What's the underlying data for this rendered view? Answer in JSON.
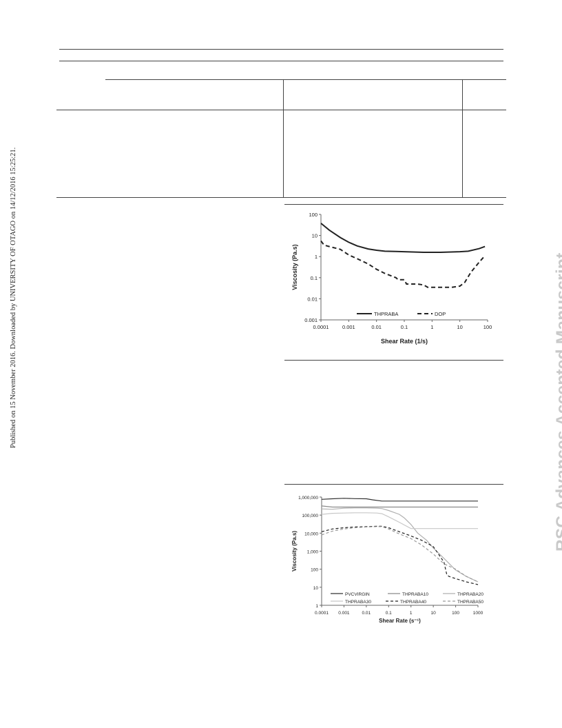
{
  "side_note": "Published on 15 November 2016. Downloaded by UNIVERSITY OF OTAGO on 14/12/2016 15:25:21.",
  "watermark": "RSC Advances Accepted Manuscript",
  "chart_data": [
    {
      "type": "line",
      "xlabel": "Shear Rate (1/s)",
      "ylabel": "Viscosity (Pa.s)",
      "x_scale": "log",
      "y_scale": "log",
      "xlim": [
        0.0001,
        100
      ],
      "ylim": [
        0.001,
        100
      ],
      "x_ticks": [
        "0.0001",
        "0.001",
        "0.01",
        "0.1",
        "1",
        "10",
        "100"
      ],
      "y_ticks": [
        "0.001",
        "0.01",
        "0.1",
        "1",
        "10",
        "100"
      ],
      "legend_position": "bottom",
      "series": [
        {
          "name": "THPRABA",
          "color": "#222222",
          "style": "solid",
          "x": [
            0.0001,
            0.0002,
            0.0005,
            0.001,
            0.002,
            0.005,
            0.01,
            0.02,
            0.05,
            0.1,
            0.2,
            0.5,
            1,
            2,
            5,
            10,
            20,
            50,
            80
          ],
          "y": [
            38,
            18,
            8,
            4.8,
            3.2,
            2.3,
            2.0,
            1.8,
            1.75,
            1.7,
            1.65,
            1.6,
            1.6,
            1.6,
            1.65,
            1.7,
            1.8,
            2.4,
            3.0
          ]
        },
        {
          "name": "DOP",
          "color": "#222222",
          "style": "dashed",
          "x": [
            0.0001,
            0.00013,
            0.0002,
            0.0005,
            0.001,
            0.002,
            0.005,
            0.01,
            0.02,
            0.05,
            0.06,
            0.1,
            0.12,
            0.15,
            0.3,
            0.5,
            0.7,
            1,
            2,
            5,
            10,
            15,
            25,
            50,
            80
          ],
          "y": [
            5.5,
            3.5,
            3.0,
            2.2,
            1.2,
            0.8,
            0.45,
            0.25,
            0.16,
            0.1,
            0.08,
            0.08,
            0.05,
            0.05,
            0.05,
            0.045,
            0.035,
            0.035,
            0.035,
            0.035,
            0.04,
            0.06,
            0.18,
            0.55,
            1.1
          ]
        }
      ]
    },
    {
      "type": "line",
      "xlabel": "Shear Rate (s⁻¹)",
      "ylabel": "Viscosity (Pa.s)",
      "x_scale": "log",
      "y_scale": "log",
      "xlim": [
        0.0001,
        1000
      ],
      "ylim": [
        1,
        1000000
      ],
      "x_ticks": [
        "0.0001",
        "0.001",
        "0.01",
        "0.1",
        "1",
        "10",
        "100",
        "1000"
      ],
      "y_ticks": [
        "1",
        "10",
        "100",
        "1,000",
        "10,000",
        "100,000",
        "1,000,000"
      ],
      "legend_position": "bottom",
      "series": [
        {
          "name": "PVCVIRGIN",
          "color": "#333333",
          "style": "solid",
          "x": [
            0.0001,
            0.0003,
            0.001,
            0.003,
            0.01,
            0.02,
            0.05,
            0.1,
            1,
            10,
            100,
            1000
          ],
          "y": [
            750000,
            800000,
            850000,
            820000,
            800000,
            700000,
            600000,
            600000,
            600000,
            600000,
            600000,
            600000
          ]
        },
        {
          "name": "THPRABA10",
          "color": "#8a8a8a",
          "style": "solid",
          "x": [
            0.0001,
            0.0003,
            0.001,
            0.003,
            0.01,
            0.03,
            0.1,
            1,
            10,
            100,
            1000
          ],
          "y": [
            320000,
            280000,
            280000,
            280000,
            280000,
            280000,
            280000,
            280000,
            280000,
            280000,
            280000
          ]
        },
        {
          "name": "THPRABA20",
          "color": "#b0b0b0",
          "style": "solid",
          "x": [
            0.0001,
            0.0003,
            0.001,
            0.003,
            0.01,
            0.03,
            0.05,
            0.1,
            0.3,
            0.5,
            1,
            2,
            5,
            10,
            30,
            100,
            300,
            1000
          ],
          "y": [
            220000,
            210000,
            240000,
            250000,
            250000,
            240000,
            230000,
            180000,
            110000,
            70000,
            30000,
            10000,
            4000,
            1500,
            400,
            90,
            40,
            20
          ]
        },
        {
          "name": "THPRABA30",
          "color": "#c8c8c8",
          "style": "solid",
          "x": [
            0.0001,
            0.0003,
            0.001,
            0.003,
            0.01,
            0.03,
            0.05,
            0.1,
            0.3,
            1,
            10,
            100,
            1000
          ],
          "y": [
            110000,
            125000,
            130000,
            135000,
            135000,
            130000,
            120000,
            80000,
            40000,
            18000,
            18000,
            18000,
            18000
          ]
        },
        {
          "name": "THPRABA40",
          "color": "#222222",
          "style": "dashed",
          "x": [
            0.0001,
            0.0003,
            0.001,
            0.003,
            0.01,
            0.03,
            0.05,
            0.1,
            0.3,
            1,
            3,
            10,
            30,
            40,
            50,
            100,
            300,
            1000
          ],
          "y": [
            12000,
            17000,
            20000,
            22000,
            23000,
            24000,
            24000,
            20000,
            12000,
            7000,
            4000,
            1800,
            250,
            50,
            40,
            30,
            20,
            14
          ]
        },
        {
          "name": "THPRABA50",
          "color": "#999999",
          "style": "dashed",
          "x": [
            0.0001,
            0.0003,
            0.001,
            0.003,
            0.01,
            0.03,
            0.05,
            0.1,
            0.3,
            1,
            3,
            10,
            30,
            100,
            300,
            1000
          ],
          "y": [
            8000,
            13000,
            17000,
            20000,
            22000,
            23000,
            23000,
            17000,
            9000,
            5000,
            2200,
            700,
            200,
            100,
            40,
            20
          ]
        }
      ]
    }
  ]
}
